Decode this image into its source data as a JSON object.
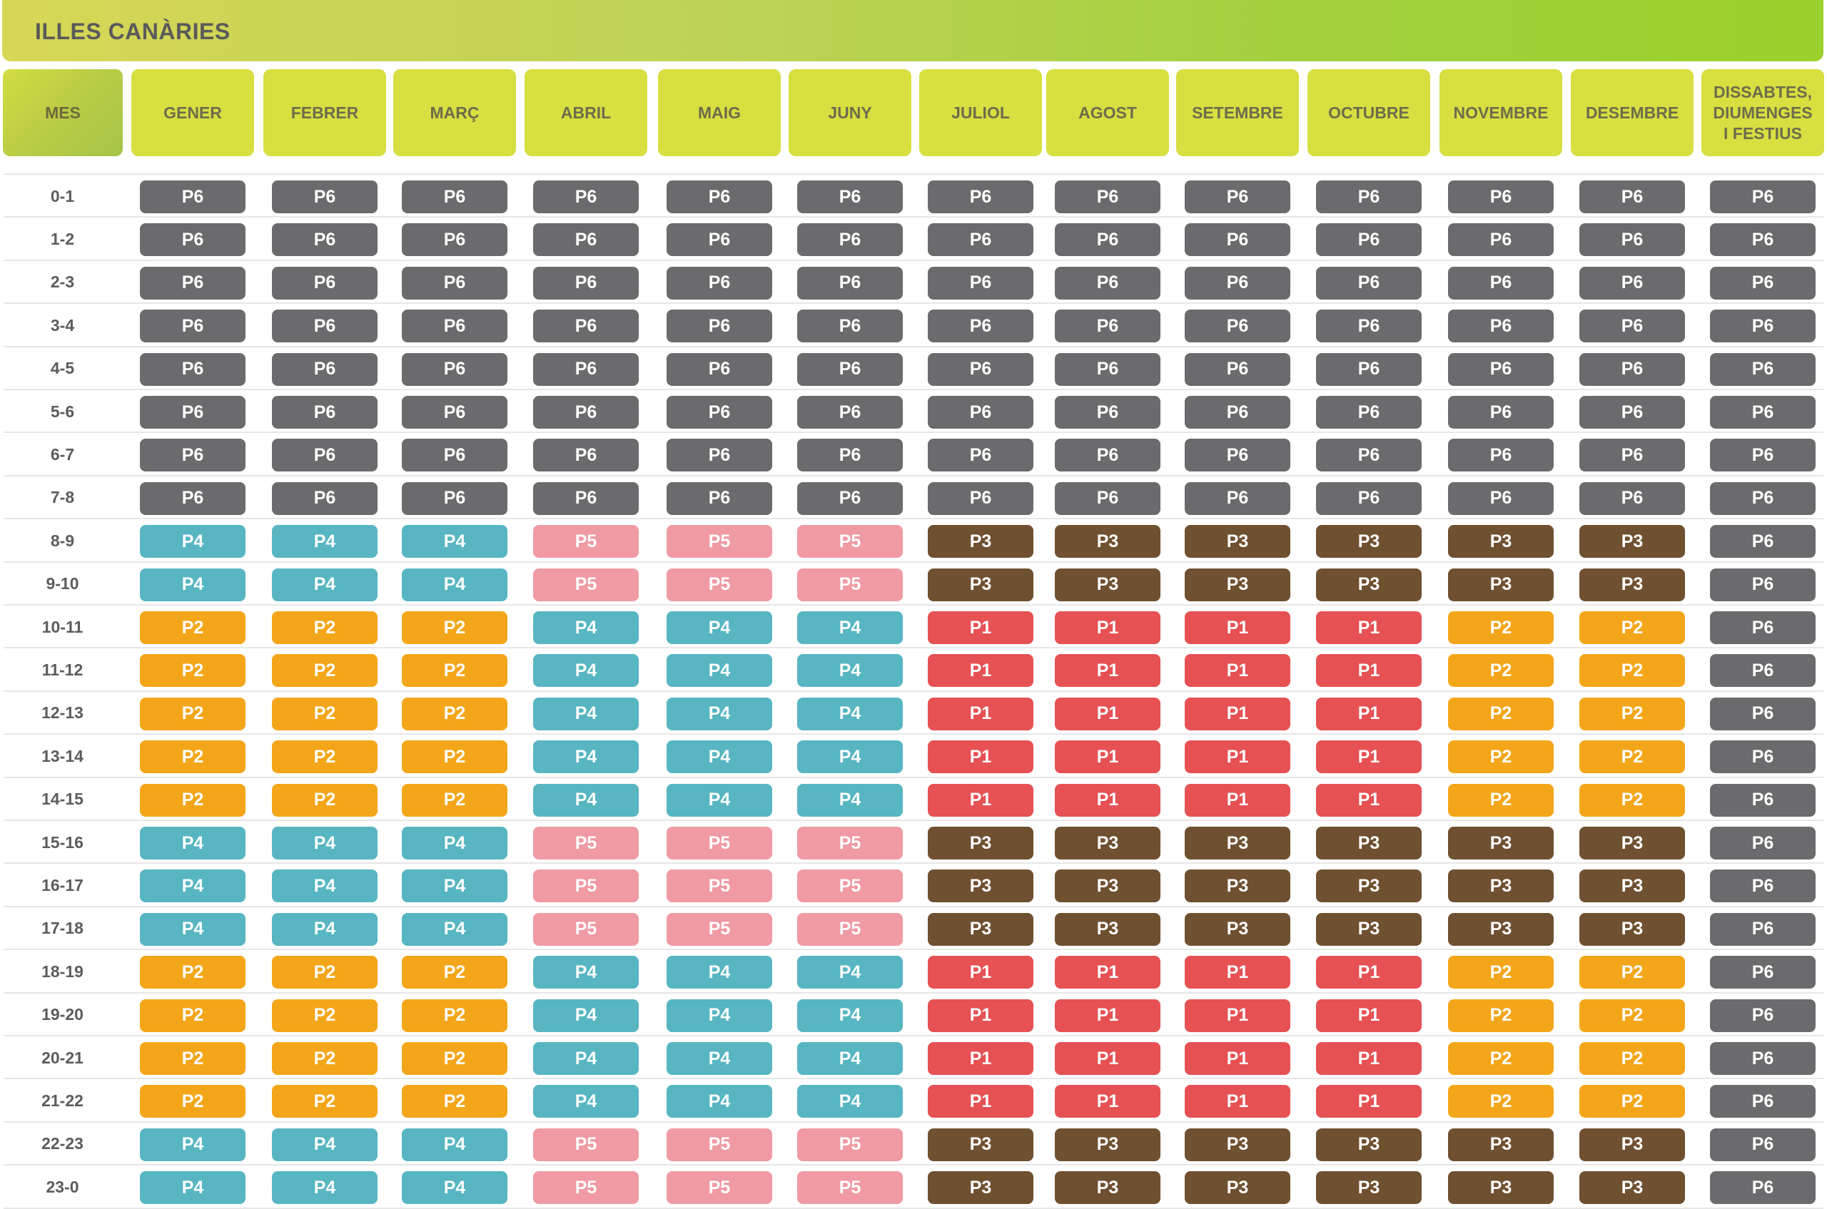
{
  "title": "ILLES CANÀRIES",
  "header": [
    "MES",
    "GENER",
    "FEBRER",
    "MARÇ",
    "ABRIL",
    "MAIG",
    "JUNY",
    "JULIOL",
    "AGOST",
    "SETEMBRE",
    "OCTUBRE",
    "NOVEMBRE",
    "DESEMBRE",
    "DISSABTES,\nDIUMENGES\nI FESTIUS"
  ],
  "colors": {
    "P1": "#e65154",
    "P2": "#f4a61a",
    "P3": "#6f5030",
    "P4": "#57b6c1",
    "P5": "#f09aa4",
    "P6": "#6b6a6c"
  },
  "rows": [
    {
      "hour": "0-1",
      "cells": [
        "P6",
        "P6",
        "P6",
        "P6",
        "P6",
        "P6",
        "P6",
        "P6",
        "P6",
        "P6",
        "P6",
        "P6",
        "P6"
      ]
    },
    {
      "hour": "1-2",
      "cells": [
        "P6",
        "P6",
        "P6",
        "P6",
        "P6",
        "P6",
        "P6",
        "P6",
        "P6",
        "P6",
        "P6",
        "P6",
        "P6"
      ]
    },
    {
      "hour": "2-3",
      "cells": [
        "P6",
        "P6",
        "P6",
        "P6",
        "P6",
        "P6",
        "P6",
        "P6",
        "P6",
        "P6",
        "P6",
        "P6",
        "P6"
      ]
    },
    {
      "hour": "3-4",
      "cells": [
        "P6",
        "P6",
        "P6",
        "P6",
        "P6",
        "P6",
        "P6",
        "P6",
        "P6",
        "P6",
        "P6",
        "P6",
        "P6"
      ]
    },
    {
      "hour": "4-5",
      "cells": [
        "P6",
        "P6",
        "P6",
        "P6",
        "P6",
        "P6",
        "P6",
        "P6",
        "P6",
        "P6",
        "P6",
        "P6",
        "P6"
      ]
    },
    {
      "hour": "5-6",
      "cells": [
        "P6",
        "P6",
        "P6",
        "P6",
        "P6",
        "P6",
        "P6",
        "P6",
        "P6",
        "P6",
        "P6",
        "P6",
        "P6"
      ]
    },
    {
      "hour": "6-7",
      "cells": [
        "P6",
        "P6",
        "P6",
        "P6",
        "P6",
        "P6",
        "P6",
        "P6",
        "P6",
        "P6",
        "P6",
        "P6",
        "P6"
      ]
    },
    {
      "hour": "7-8",
      "cells": [
        "P6",
        "P6",
        "P6",
        "P6",
        "P6",
        "P6",
        "P6",
        "P6",
        "P6",
        "P6",
        "P6",
        "P6",
        "P6"
      ]
    },
    {
      "hour": "8-9",
      "cells": [
        "P4",
        "P4",
        "P4",
        "P5",
        "P5",
        "P5",
        "P3",
        "P3",
        "P3",
        "P3",
        "P3",
        "P3",
        "P6"
      ]
    },
    {
      "hour": "9-10",
      "cells": [
        "P4",
        "P4",
        "P4",
        "P5",
        "P5",
        "P5",
        "P3",
        "P3",
        "P3",
        "P3",
        "P3",
        "P3",
        "P6"
      ]
    },
    {
      "hour": "10-11",
      "cells": [
        "P2",
        "P2",
        "P2",
        "P4",
        "P4",
        "P4",
        "P1",
        "P1",
        "P1",
        "P1",
        "P2",
        "P2",
        "P6"
      ]
    },
    {
      "hour": "11-12",
      "cells": [
        "P2",
        "P2",
        "P2",
        "P4",
        "P4",
        "P4",
        "P1",
        "P1",
        "P1",
        "P1",
        "P2",
        "P2",
        "P6"
      ]
    },
    {
      "hour": "12-13",
      "cells": [
        "P2",
        "P2",
        "P2",
        "P4",
        "P4",
        "P4",
        "P1",
        "P1",
        "P1",
        "P1",
        "P2",
        "P2",
        "P6"
      ]
    },
    {
      "hour": "13-14",
      "cells": [
        "P2",
        "P2",
        "P2",
        "P4",
        "P4",
        "P4",
        "P1",
        "P1",
        "P1",
        "P1",
        "P2",
        "P2",
        "P6"
      ]
    },
    {
      "hour": "14-15",
      "cells": [
        "P2",
        "P2",
        "P2",
        "P4",
        "P4",
        "P4",
        "P1",
        "P1",
        "P1",
        "P1",
        "P2",
        "P2",
        "P6"
      ]
    },
    {
      "hour": "15-16",
      "cells": [
        "P4",
        "P4",
        "P4",
        "P5",
        "P5",
        "P5",
        "P3",
        "P3",
        "P3",
        "P3",
        "P3",
        "P3",
        "P6"
      ]
    },
    {
      "hour": "16-17",
      "cells": [
        "P4",
        "P4",
        "P4",
        "P5",
        "P5",
        "P5",
        "P3",
        "P3",
        "P3",
        "P3",
        "P3",
        "P3",
        "P6"
      ]
    },
    {
      "hour": "17-18",
      "cells": [
        "P4",
        "P4",
        "P4",
        "P5",
        "P5",
        "P5",
        "P3",
        "P3",
        "P3",
        "P3",
        "P3",
        "P3",
        "P6"
      ]
    },
    {
      "hour": "18-19",
      "cells": [
        "P2",
        "P2",
        "P2",
        "P4",
        "P4",
        "P4",
        "P1",
        "P1",
        "P1",
        "P1",
        "P2",
        "P2",
        "P6"
      ]
    },
    {
      "hour": "19-20",
      "cells": [
        "P2",
        "P2",
        "P2",
        "P4",
        "P4",
        "P4",
        "P1",
        "P1",
        "P1",
        "P1",
        "P2",
        "P2",
        "P6"
      ]
    },
    {
      "hour": "20-21",
      "cells": [
        "P2",
        "P2",
        "P2",
        "P4",
        "P4",
        "P4",
        "P1",
        "P1",
        "P1",
        "P1",
        "P2",
        "P2",
        "P6"
      ]
    },
    {
      "hour": "21-22",
      "cells": [
        "P2",
        "P2",
        "P2",
        "P4",
        "P4",
        "P4",
        "P1",
        "P1",
        "P1",
        "P1",
        "P2",
        "P2",
        "P6"
      ]
    },
    {
      "hour": "22-23",
      "cells": [
        "P4",
        "P4",
        "P4",
        "P5",
        "P5",
        "P5",
        "P3",
        "P3",
        "P3",
        "P3",
        "P3",
        "P3",
        "P6"
      ]
    },
    {
      "hour": "23-0",
      "cells": [
        "P4",
        "P4",
        "P4",
        "P5",
        "P5",
        "P5",
        "P3",
        "P3",
        "P3",
        "P3",
        "P3",
        "P3",
        "P6"
      ]
    }
  ]
}
